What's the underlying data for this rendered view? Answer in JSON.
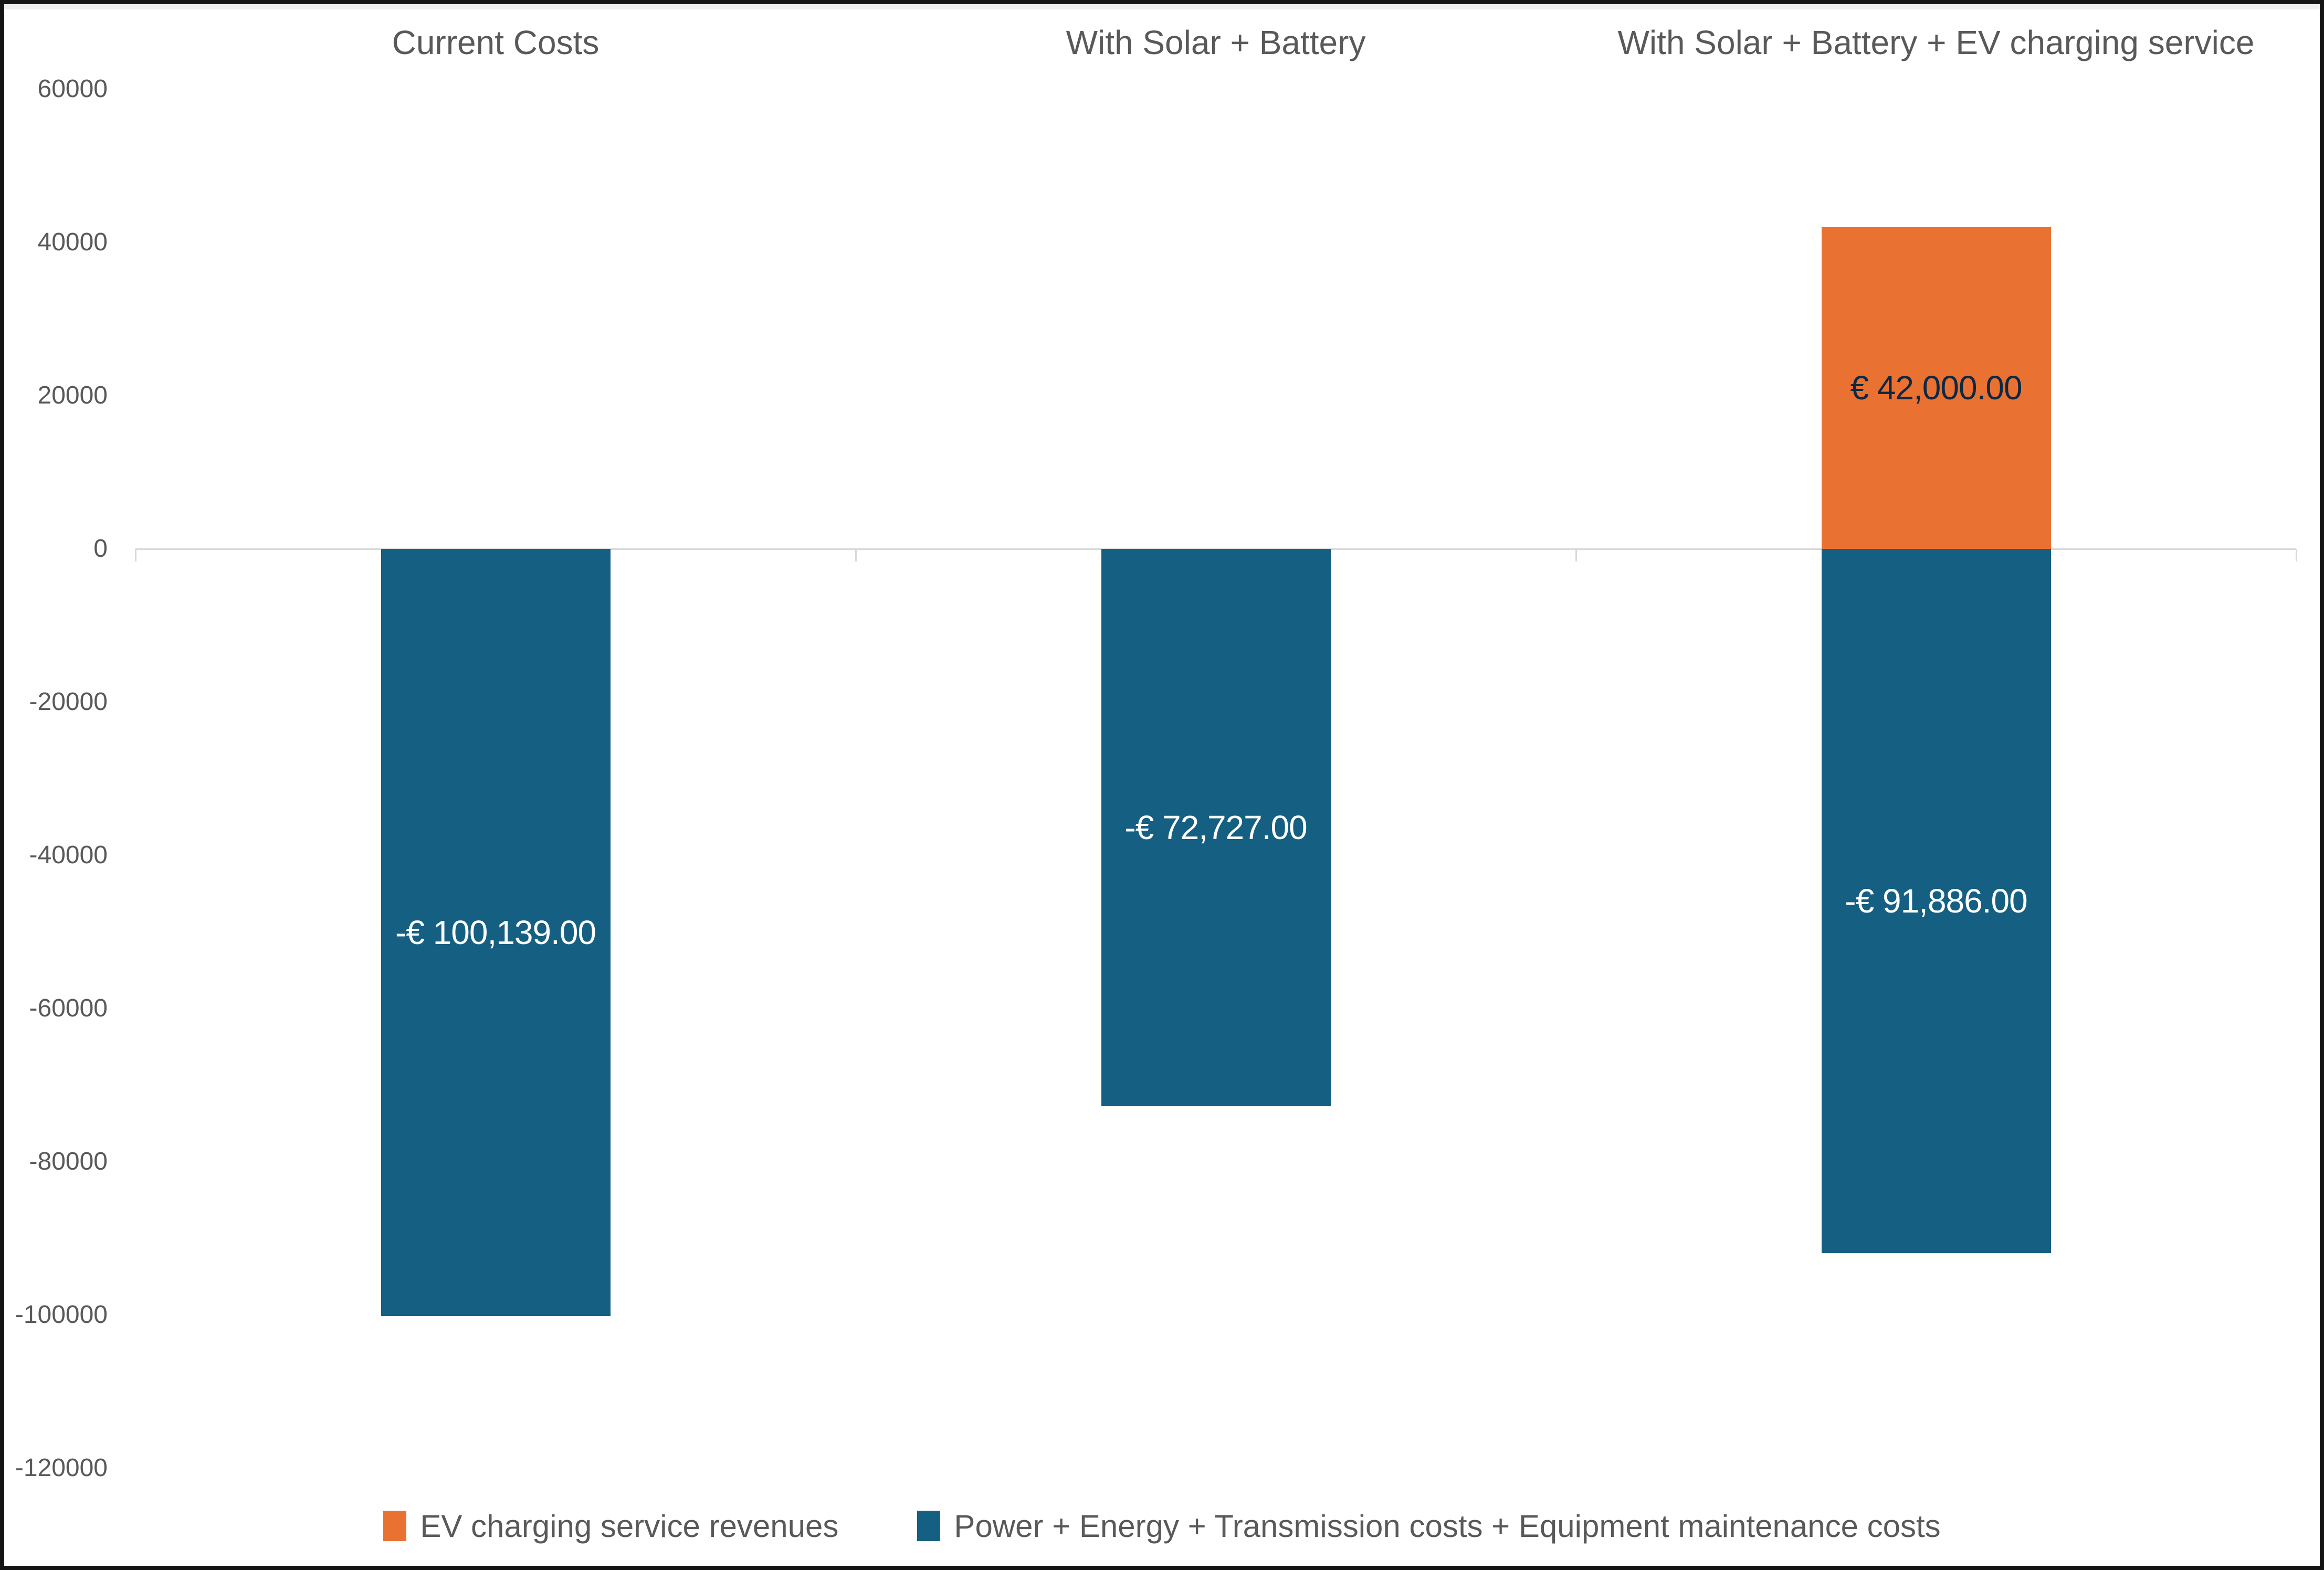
{
  "chart_data": {
    "type": "bar",
    "categories": [
      "Current Costs",
      "With Solar + Battery",
      "With Solar + Battery + EV charging service"
    ],
    "series": [
      {
        "name": "EV charging service revenues",
        "color": "#E97132",
        "label_color": "#0E2841",
        "values": [
          null,
          null,
          42000
        ],
        "labels": [
          null,
          null,
          "€ 42,000.00"
        ]
      },
      {
        "name": "Power + Energy + Transmission costs + Equipment maintenance costs",
        "color": "#156082",
        "label_color": "#FFFFFF",
        "values": [
          -100139,
          -72727,
          -91886
        ],
        "labels": [
          "-€ 100,139.00",
          "-€ 72,727.00",
          "-€ 91,886.00"
        ]
      }
    ],
    "ylim": [
      -120000,
      60000
    ],
    "ytick_step": 20000,
    "yticks": [
      60000,
      40000,
      20000,
      0,
      -20000,
      -40000,
      -60000,
      -80000,
      -100000,
      -120000
    ],
    "grid": false,
    "legend_position": "bottom",
    "axis_color": "#D9D9D9",
    "text_color": "#595959",
    "background_color": "#FFFFFF"
  }
}
